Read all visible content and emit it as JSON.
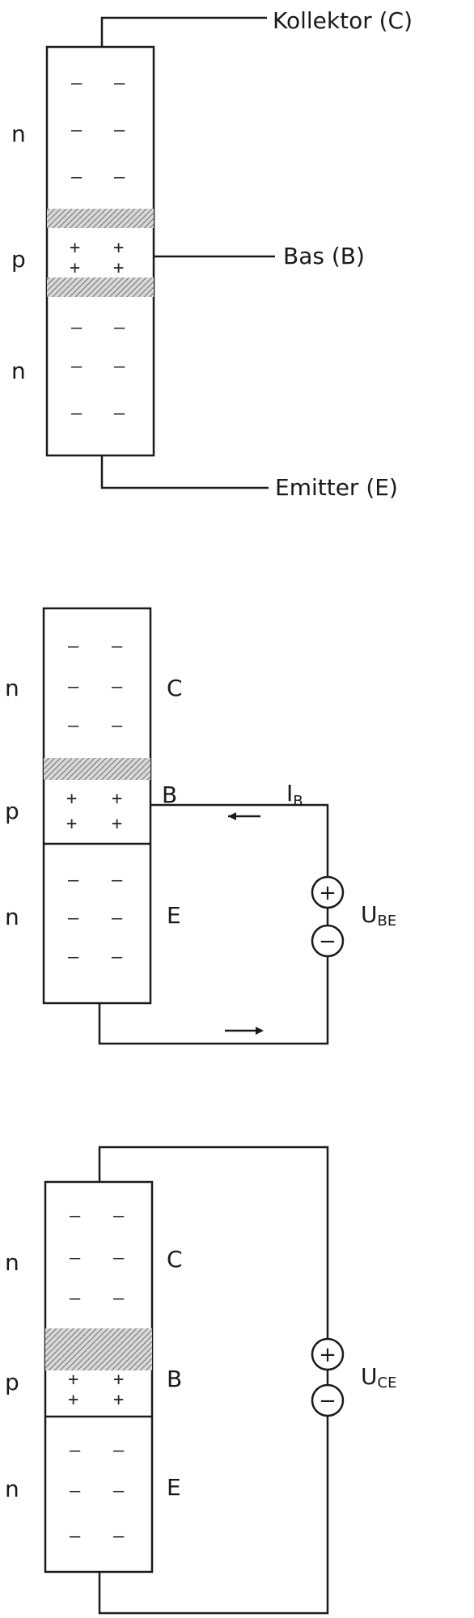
{
  "diagram1": {
    "collector_label": "Kollektor (C)",
    "base_label": "Bas (B)",
    "emitter_label": "Emitter (E)",
    "layers": [
      "n",
      "p",
      "n"
    ]
  },
  "diagram2": {
    "layers": [
      "n",
      "p",
      "n"
    ],
    "terminal_c": "C",
    "terminal_b": "B",
    "terminal_e": "E",
    "current_label": "I",
    "current_sub": "B",
    "voltage_label": "U",
    "voltage_sub": "BE",
    "plus": "+",
    "minus": "−"
  },
  "diagram3": {
    "layers": [
      "n",
      "p",
      "n"
    ],
    "terminal_c": "C",
    "terminal_b": "B",
    "terminal_e": "E",
    "voltage_label": "U",
    "voltage_sub": "CE",
    "plus": "+",
    "minus": "−"
  },
  "charges": {
    "n_sign": "–",
    "p_sign": "+"
  }
}
